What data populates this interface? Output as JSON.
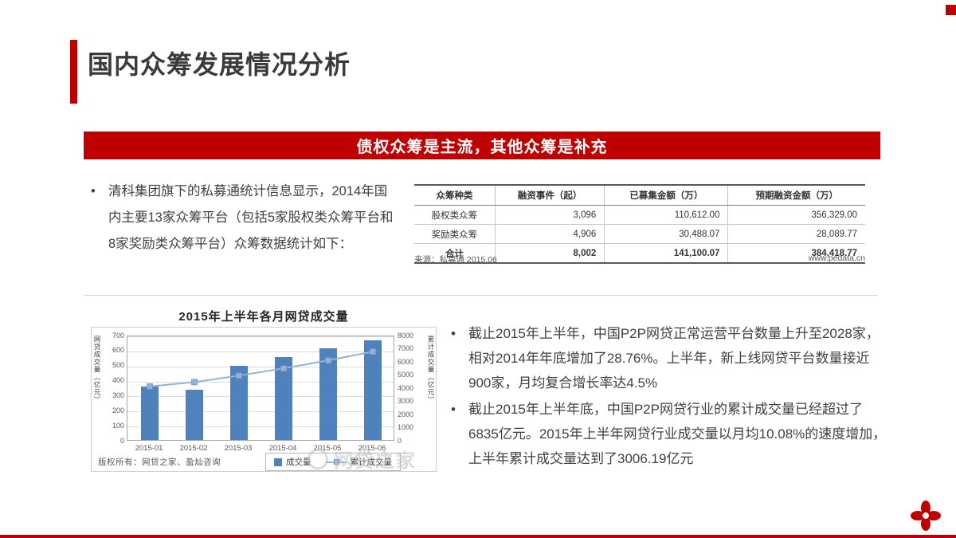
{
  "slide": {
    "title": "国内众筹发展情况分析",
    "banner": "债权众筹是主流，其他众筹是补充"
  },
  "intro_bullet": "清科集团旗下的私募通统计信息显示，2014年国内主要13家众筹平台（包括5家股权类众筹平台和8家奖励类众筹平台）众筹数据统计如下：",
  "table": {
    "headers": [
      "众筹种类",
      "融资事件（起）",
      "已募集金额（万）",
      "预期融资金额（万）"
    ],
    "rows": [
      [
        "股权类众筹",
        "3,096",
        "110,612.00",
        "356,329.00"
      ],
      [
        "奖励类众筹",
        "4,906",
        "30,488.07",
        "28,089.77"
      ]
    ],
    "total_row": [
      "合计",
      "8,002",
      "141,100.07",
      "384,418.77"
    ],
    "source_left": "来源：私募通 2015.06",
    "source_right": "www.pedata.cn"
  },
  "chart_data": {
    "type": "bar",
    "title": "2015年上半年各月网贷成交量",
    "categories": [
      "2015-01",
      "2015-02",
      "2015-03",
      "2015-04",
      "2015-05",
      "2015-06"
    ],
    "series": [
      {
        "name": "成交量",
        "type": "bar",
        "axis": "left",
        "values": [
          358,
          333,
          493,
          552,
          609,
          662
        ]
      },
      {
        "name": "累计成交量",
        "type": "line",
        "axis": "right",
        "values": [
          4187,
          4520,
          5013,
          5565,
          6174,
          6835
        ]
      }
    ],
    "left_axis": {
      "label": "网贷成交量（亿元）",
      "min": 0,
      "max": 700,
      "step": 100
    },
    "right_axis": {
      "label": "累计成交量（亿元）",
      "min": 0,
      "max": 8000,
      "step": 1000
    },
    "legend_position": "bottom",
    "grid": true,
    "copyright": "版权所有：网贷之家、盈灿咨询"
  },
  "right_bullets": [
    "截止2015年上半年，中国P2P网贷正常运营平台数量上升至2028家，相对2014年年底增加了28.76%。上半年，新上线网贷平台数量接近900家，月均复合增长率达4.5%",
    "截止2015年上半年底，中国P2P网贷行业的累计成交量已经超过了6835亿元。2015年上半年网贷行业成交量以月均10.08%的速度增加，上半年累计成交量达到了3006.19亿元"
  ],
  "watermark": {
    "text": "网贷之家"
  },
  "colors": {
    "accent_red": "#C00000",
    "bar_blue": "#4F81BD",
    "line_blue": "#95B3D7"
  }
}
